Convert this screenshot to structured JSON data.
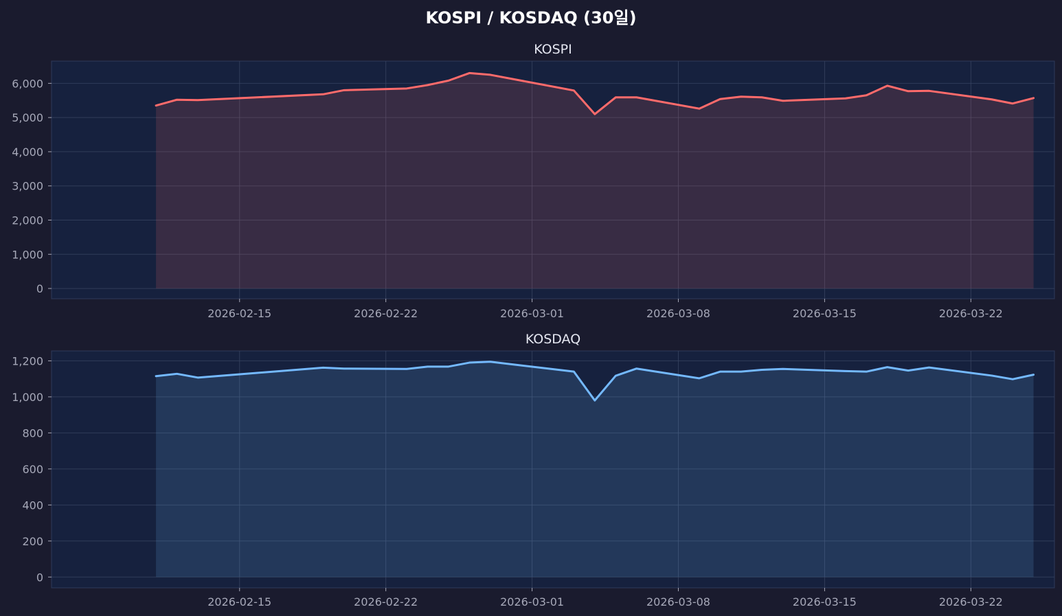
{
  "figure": {
    "title": "KOSPI / KOSDAQ (30일)",
    "background": "#1a1b2e",
    "axes_background": "#16213e",
    "grid_color": "#3a4563",
    "spine_color": "#2e3a5a"
  },
  "chart_data": [
    {
      "type": "area",
      "title": "KOSPI",
      "xlabel": "",
      "ylabel": "",
      "color": "#ff6b6b",
      "fill_color": "#ff6b6b",
      "grid": true,
      "xlim": [
        "2026-02-06",
        "2026-03-26"
      ],
      "ylim": [
        -300,
        6650
      ],
      "yticks": [
        0,
        1000,
        2000,
        3000,
        4000,
        5000,
        6000
      ],
      "ytick_labels": [
        "0",
        "1,000",
        "2,000",
        "3,000",
        "4,000",
        "5,000",
        "6,000"
      ],
      "xticks": [
        "2026-02-15",
        "2026-02-22",
        "2026-03-01",
        "2026-03-08",
        "2026-03-15",
        "2026-03-22"
      ],
      "xtick_labels": [
        "2026-02-15",
        "2026-02-22",
        "2026-03-01",
        "2026-03-08",
        "2026-03-15",
        "2026-03-22"
      ],
      "x": [
        "2026-02-11",
        "2026-02-12",
        "2026-02-13",
        "2026-02-19",
        "2026-02-20",
        "2026-02-23",
        "2026-02-24",
        "2026-02-25",
        "2026-02-26",
        "2026-02-27",
        "2026-03-03",
        "2026-03-04",
        "2026-03-05",
        "2026-03-06",
        "2026-03-09",
        "2026-03-10",
        "2026-03-11",
        "2026-03-12",
        "2026-03-13",
        "2026-03-16",
        "2026-03-17",
        "2026-03-18",
        "2026-03-19",
        "2026-03-20",
        "2026-03-23",
        "2026-03-24",
        "2026-03-25"
      ],
      "values": [
        5350,
        5520,
        5510,
        5680,
        5800,
        5850,
        5950,
        6080,
        6300,
        6250,
        5790,
        5100,
        5590,
        5590,
        5260,
        5540,
        5610,
        5590,
        5490,
        5560,
        5650,
        5930,
        5770,
        5780,
        5530,
        5410,
        5570
      ]
    },
    {
      "type": "area",
      "title": "KOSDAQ",
      "xlabel": "",
      "ylabel": "",
      "color": "#74b9ff",
      "fill_color": "#74b9ff",
      "grid": true,
      "xlim": [
        "2026-02-06",
        "2026-03-26"
      ],
      "ylim": [
        -60,
        1255
      ],
      "yticks": [
        0,
        200,
        400,
        600,
        800,
        1000,
        1200
      ],
      "ytick_labels": [
        "0",
        "200",
        "400",
        "600",
        "800",
        "1,000",
        "1,200"
      ],
      "xticks": [
        "2026-02-15",
        "2026-02-22",
        "2026-03-01",
        "2026-03-08",
        "2026-03-15",
        "2026-03-22"
      ],
      "xtick_labels": [
        "2026-02-15",
        "2026-02-22",
        "2026-03-01",
        "2026-03-08",
        "2026-03-15",
        "2026-03-22"
      ],
      "x": [
        "2026-02-11",
        "2026-02-12",
        "2026-02-13",
        "2026-02-19",
        "2026-02-20",
        "2026-02-23",
        "2026-02-24",
        "2026-02-25",
        "2026-02-26",
        "2026-02-27",
        "2026-03-03",
        "2026-03-04",
        "2026-03-05",
        "2026-03-06",
        "2026-03-09",
        "2026-03-10",
        "2026-03-11",
        "2026-03-12",
        "2026-03-13",
        "2026-03-16",
        "2026-03-17",
        "2026-03-18",
        "2026-03-19",
        "2026-03-20",
        "2026-03-23",
        "2026-03-24",
        "2026-03-25"
      ],
      "values": [
        1115,
        1128,
        1107,
        1162,
        1157,
        1155,
        1168,
        1168,
        1190,
        1195,
        1140,
        980,
        1117,
        1157,
        1103,
        1140,
        1140,
        1150,
        1155,
        1143,
        1140,
        1165,
        1146,
        1163,
        1118,
        1098,
        1123
      ]
    }
  ]
}
